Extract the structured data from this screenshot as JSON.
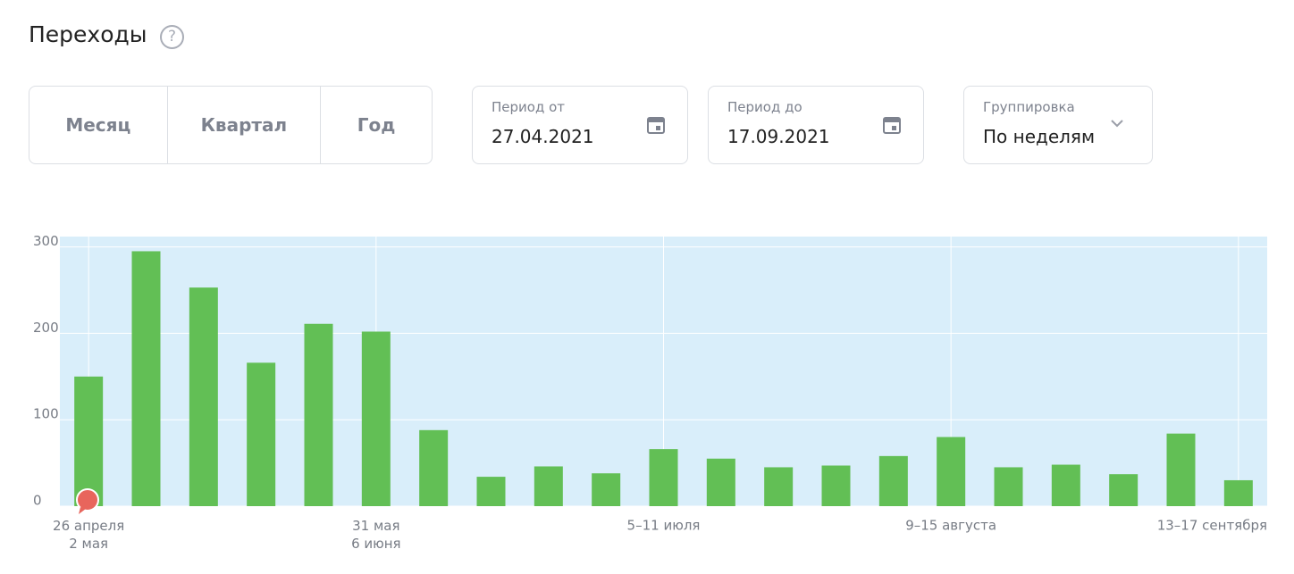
{
  "header": {
    "title": "Переходы",
    "help": "?"
  },
  "period_buttons": [
    "Месяц",
    "Квартал",
    "Год"
  ],
  "period_from": {
    "label": "Период от",
    "value": "27.04.2021"
  },
  "period_to": {
    "label": "Период до",
    "value": "17.09.2021"
  },
  "grouping": {
    "label": "Группировка",
    "value": "По неделям"
  },
  "chart_data": {
    "type": "bar",
    "categories": [
      "26 апреля\n2 мая",
      null,
      null,
      null,
      null,
      "31 мая\n6 июня",
      null,
      null,
      null,
      null,
      "5–11 июля",
      null,
      null,
      null,
      null,
      "9–15 августа",
      null,
      null,
      null,
      null,
      "13–17 сентября"
    ],
    "values": [
      150,
      295,
      253,
      166,
      211,
      202,
      88,
      34,
      46,
      38,
      66,
      55,
      45,
      47,
      58,
      80,
      45,
      48,
      37,
      84,
      30
    ],
    "color": "#62bf55",
    "background": "#d9eefa",
    "ylim": [
      0,
      312
    ],
    "yticks": [
      0,
      100,
      200,
      300
    ],
    "grid": true
  }
}
